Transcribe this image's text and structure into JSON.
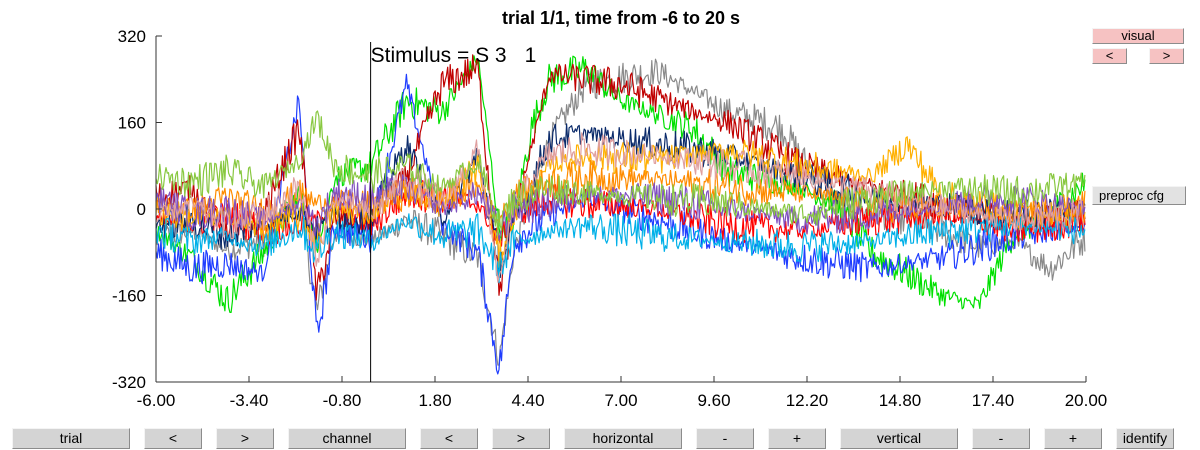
{
  "chart_data": {
    "type": "line",
    "title": "trial 1/1, time from -6 to 20 s",
    "xlim": [
      -6,
      20
    ],
    "ylim": [
      -320,
      320
    ],
    "x_ticks": [
      "-6.00",
      "-3.40",
      "-0.80",
      "1.80",
      "4.40",
      "7.00",
      "9.60",
      "12.20",
      "14.80",
      "17.40",
      "20.00"
    ],
    "y_ticks": [
      "320",
      "160",
      "0",
      "-160",
      "-320"
    ],
    "event_marker": {
      "x": 0,
      "label": "Stimulus = S  3",
      "overprint_digit": "1"
    },
    "series_colors": [
      "#1f3dff",
      "#ff0000",
      "#00e000",
      "#8a8a8a",
      "#c00000",
      "#0a2a6a",
      "#ffb000",
      "#8050c0",
      "#00b0e8",
      "#ff8c00",
      "#e0a0a0",
      "#88c840"
    ],
    "series": [
      {
        "color": "#8a8a8a",
        "values": [
          [
            -6,
            -55
          ],
          [
            -5,
            -40
          ],
          [
            -4,
            -75
          ],
          [
            -3,
            -60
          ],
          [
            -2,
            20
          ],
          [
            -1.5,
            -190
          ],
          [
            -1,
            -40
          ],
          [
            0,
            -60
          ],
          [
            1,
            -20
          ],
          [
            2,
            -50
          ],
          [
            3,
            -90
          ],
          [
            3.6,
            -280
          ],
          [
            4,
            -80
          ],
          [
            5,
            130
          ],
          [
            6,
            230
          ],
          [
            8,
            255
          ],
          [
            10,
            180
          ],
          [
            11.5,
            150
          ],
          [
            12,
            100
          ],
          [
            13,
            20
          ],
          [
            14,
            -10
          ],
          [
            15,
            -20
          ],
          [
            16,
            -40
          ],
          [
            17,
            -70
          ],
          [
            18,
            -60
          ],
          [
            19,
            -110
          ],
          [
            20,
            -50
          ]
        ]
      },
      {
        "color": "#00e000",
        "values": [
          [
            -6,
            -40
          ],
          [
            -5,
            -90
          ],
          [
            -4,
            -170
          ],
          [
            -3,
            -80
          ],
          [
            -2,
            30
          ],
          [
            -1.5,
            -70
          ],
          [
            -1,
            60
          ],
          [
            0,
            80
          ],
          [
            1,
            200
          ],
          [
            2,
            180
          ],
          [
            3,
            280
          ],
          [
            3.6,
            -40
          ],
          [
            4,
            -20
          ],
          [
            4.5,
            150
          ],
          [
            5,
            240
          ],
          [
            6,
            260
          ],
          [
            7,
            200
          ],
          [
            9,
            150
          ],
          [
            10,
            70
          ],
          [
            12,
            40
          ],
          [
            13,
            10
          ],
          [
            14,
            -80
          ],
          [
            15,
            -120
          ],
          [
            16,
            -160
          ],
          [
            17,
            -180
          ],
          [
            18,
            -40
          ],
          [
            19,
            -10
          ],
          [
            20,
            50
          ]
        ]
      },
      {
        "color": "#1f3dff",
        "values": [
          [
            -6,
            -80
          ],
          [
            -5,
            -110
          ],
          [
            -4,
            -100
          ],
          [
            -3,
            -120
          ],
          [
            -2,
            200
          ],
          [
            -1.5,
            -240
          ],
          [
            -1,
            -30
          ],
          [
            0,
            -50
          ],
          [
            1,
            230
          ],
          [
            2,
            -30
          ],
          [
            3,
            -80
          ],
          [
            3.6,
            -300
          ],
          [
            4,
            -60
          ],
          [
            5,
            -10
          ],
          [
            6,
            20
          ],
          [
            8,
            -20
          ],
          [
            10,
            -60
          ],
          [
            12,
            -90
          ],
          [
            14,
            -110
          ],
          [
            16,
            -90
          ],
          [
            18,
            -50
          ],
          [
            20,
            -30
          ]
        ]
      },
      {
        "color": "#c00000",
        "values": [
          [
            -6,
            20
          ],
          [
            -5,
            40
          ],
          [
            -4,
            -40
          ],
          [
            -3,
            -10
          ],
          [
            -2,
            150
          ],
          [
            -1.5,
            -160
          ],
          [
            -1,
            -20
          ],
          [
            0,
            -10
          ],
          [
            1,
            60
          ],
          [
            2,
            230
          ],
          [
            3,
            260
          ],
          [
            3.6,
            -150
          ],
          [
            4,
            -20
          ],
          [
            5,
            250
          ],
          [
            6,
            240
          ],
          [
            7,
            230
          ],
          [
            9,
            180
          ],
          [
            10,
            160
          ],
          [
            12,
            80
          ],
          [
            14,
            40
          ],
          [
            16,
            10
          ],
          [
            18,
            -20
          ],
          [
            20,
            -10
          ]
        ]
      },
      {
        "color": "#ff0000",
        "values": [
          [
            -6,
            -20
          ],
          [
            -5,
            -30
          ],
          [
            -4,
            -10
          ],
          [
            -3,
            -40
          ],
          [
            -2,
            -30
          ],
          [
            -1.5,
            -20
          ],
          [
            -1,
            10
          ],
          [
            0,
            -30
          ],
          [
            1,
            30
          ],
          [
            2,
            20
          ],
          [
            3,
            10
          ],
          [
            3.6,
            -60
          ],
          [
            4,
            -10
          ],
          [
            5,
            20
          ],
          [
            6,
            10
          ],
          [
            8,
            0
          ],
          [
            10,
            -30
          ],
          [
            12,
            -40
          ],
          [
            14,
            -20
          ],
          [
            16,
            -10
          ],
          [
            18,
            -40
          ],
          [
            20,
            -20
          ]
        ]
      },
      {
        "color": "#0a2a6a",
        "values": [
          [
            -6,
            -30
          ],
          [
            -5,
            -20
          ],
          [
            -4,
            -50
          ],
          [
            -3,
            -30
          ],
          [
            -2,
            0
          ],
          [
            -1.5,
            -40
          ],
          [
            -1,
            -10
          ],
          [
            0,
            -20
          ],
          [
            1,
            120
          ],
          [
            2,
            -20
          ],
          [
            3,
            100
          ],
          [
            3.6,
            -100
          ],
          [
            4,
            -30
          ],
          [
            5,
            130
          ],
          [
            6,
            140
          ],
          [
            8,
            120
          ],
          [
            10,
            100
          ],
          [
            12,
            60
          ],
          [
            14,
            20
          ],
          [
            16,
            10
          ],
          [
            18,
            -10
          ],
          [
            20,
            0
          ]
        ]
      },
      {
        "color": "#ffb000",
        "values": [
          [
            -6,
            0
          ],
          [
            -5,
            -20
          ],
          [
            -4,
            -10
          ],
          [
            -3,
            -40
          ],
          [
            -2,
            -10
          ],
          [
            -1.5,
            -60
          ],
          [
            -1,
            0
          ],
          [
            0,
            -10
          ],
          [
            1,
            40
          ],
          [
            2,
            10
          ],
          [
            3,
            80
          ],
          [
            3.6,
            -90
          ],
          [
            4,
            -10
          ],
          [
            5,
            80
          ],
          [
            6,
            100
          ],
          [
            8,
            90
          ],
          [
            10,
            110
          ],
          [
            12,
            80
          ],
          [
            14,
            60
          ],
          [
            15,
            120
          ],
          [
            16,
            20
          ],
          [
            18,
            0
          ],
          [
            20,
            -10
          ]
        ]
      },
      {
        "color": "#ff8c00",
        "values": [
          [
            -6,
            10
          ],
          [
            -5,
            0
          ],
          [
            -4,
            20
          ],
          [
            -3,
            -10
          ],
          [
            -2,
            30
          ],
          [
            -1.5,
            10
          ],
          [
            -1,
            20
          ],
          [
            0,
            10
          ],
          [
            1,
            30
          ],
          [
            2,
            20
          ],
          [
            3,
            40
          ],
          [
            3.6,
            -20
          ],
          [
            4,
            30
          ],
          [
            5,
            50
          ],
          [
            6,
            60
          ],
          [
            8,
            55
          ],
          [
            10,
            40
          ],
          [
            12,
            30
          ],
          [
            14,
            10
          ],
          [
            16,
            0
          ],
          [
            18,
            -10
          ],
          [
            20,
            10
          ]
        ]
      },
      {
        "color": "#8050c0",
        "values": [
          [
            -6,
            20
          ],
          [
            -5,
            -10
          ],
          [
            -4,
            0
          ],
          [
            -3,
            -20
          ],
          [
            -2,
            10
          ],
          [
            -1.5,
            -30
          ],
          [
            -1,
            30
          ],
          [
            0,
            20
          ],
          [
            1,
            40
          ],
          [
            2,
            0
          ],
          [
            3,
            30
          ],
          [
            3.6,
            -40
          ],
          [
            4,
            0
          ],
          [
            5,
            10
          ],
          [
            6,
            30
          ],
          [
            8,
            20
          ],
          [
            10,
            0
          ],
          [
            12,
            -20
          ],
          [
            14,
            -10
          ],
          [
            16,
            10
          ],
          [
            18,
            20
          ],
          [
            20,
            0
          ]
        ]
      },
      {
        "color": "#00b0e8",
        "values": [
          [
            -6,
            -40
          ],
          [
            -5,
            -60
          ],
          [
            -4,
            -50
          ],
          [
            -3,
            -70
          ],
          [
            -2,
            -30
          ],
          [
            -1.5,
            -80
          ],
          [
            -1,
            -40
          ],
          [
            0,
            -60
          ],
          [
            1,
            -20
          ],
          [
            2,
            -50
          ],
          [
            3,
            -40
          ],
          [
            3.6,
            -110
          ],
          [
            4,
            -60
          ],
          [
            5,
            -40
          ],
          [
            6,
            -30
          ],
          [
            8,
            -50
          ],
          [
            10,
            -60
          ],
          [
            12,
            -70
          ],
          [
            14,
            -60
          ],
          [
            16,
            -40
          ],
          [
            18,
            -30
          ],
          [
            20,
            -40
          ]
        ]
      },
      {
        "color": "#e0a0a0",
        "values": [
          [
            -6,
            -20
          ],
          [
            -5,
            10
          ],
          [
            -4,
            -30
          ],
          [
            -3,
            -10
          ],
          [
            -2,
            40
          ],
          [
            -1.5,
            -90
          ],
          [
            -1,
            20
          ],
          [
            0,
            -10
          ],
          [
            1,
            60
          ],
          [
            2,
            10
          ],
          [
            3,
            110
          ],
          [
            3.6,
            -140
          ],
          [
            4,
            10
          ],
          [
            5,
            100
          ],
          [
            6,
            110
          ],
          [
            8,
            100
          ],
          [
            10,
            80
          ],
          [
            12,
            60
          ],
          [
            14,
            30
          ],
          [
            16,
            0
          ],
          [
            18,
            -20
          ],
          [
            20,
            -10
          ]
        ]
      },
      {
        "color": "#88c840",
        "values": [
          [
            -6,
            60
          ],
          [
            -5,
            50
          ],
          [
            -4,
            70
          ],
          [
            -3,
            40
          ],
          [
            -2,
            90
          ],
          [
            -1.5,
            170
          ],
          [
            -1,
            80
          ],
          [
            0,
            60
          ],
          [
            1,
            80
          ],
          [
            2,
            40
          ],
          [
            3,
            90
          ],
          [
            3.6,
            -30
          ],
          [
            4,
            20
          ],
          [
            5,
            40
          ],
          [
            6,
            30
          ],
          [
            8,
            20
          ],
          [
            10,
            10
          ],
          [
            12,
            -10
          ],
          [
            14,
            20
          ],
          [
            16,
            40
          ],
          [
            18,
            30
          ],
          [
            20,
            50
          ]
        ]
      }
    ]
  },
  "side_panel": {
    "visual_label": "visual",
    "prev_label": "<",
    "next_label": ">",
    "preproc_label": "preproc cfg"
  },
  "bottom_bar": {
    "trial_label": "trial",
    "trial_prev": "<",
    "trial_next": ">",
    "channel_label": "channel",
    "channel_prev": "<",
    "channel_next": ">",
    "horizontal_label": "horizontal",
    "horizontal_minus": "-",
    "horizontal_plus": "+",
    "vertical_label": "vertical",
    "vertical_minus": "-",
    "vertical_plus": "+",
    "identify_label": "identify"
  }
}
